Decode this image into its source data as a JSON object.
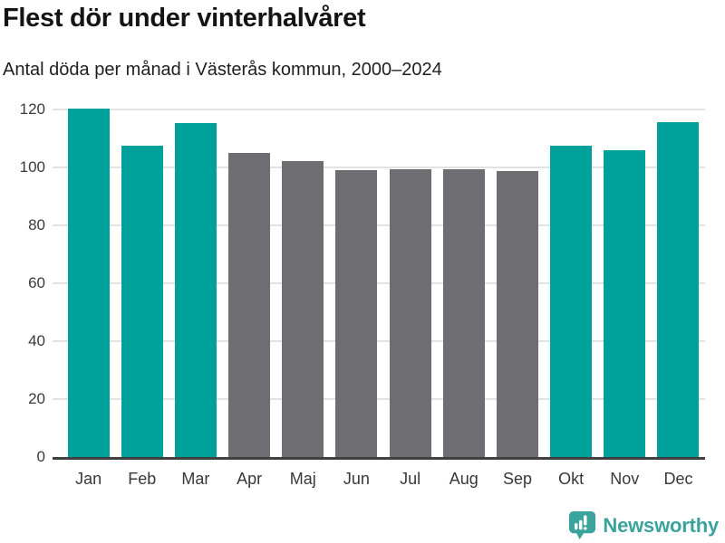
{
  "header": {
    "title": "Flest dör under vinterhalvåret",
    "subtitle": "Antal döda per månad i Västerås kommun, 2000–2024"
  },
  "colors": {
    "highlight": "#00a19a",
    "muted": "#6e6e72",
    "gridline": "#e2e2e2",
    "axis_line": "#404040",
    "brand_teal": "#3aa39b"
  },
  "chart_data": {
    "type": "bar",
    "title": "Flest dör under vinterhalvåret",
    "subtitle": "Antal döda per månad i Västerås kommun, 2000–2024",
    "categories": [
      "Jan",
      "Feb",
      "Mar",
      "Apr",
      "Maj",
      "Jun",
      "Jul",
      "Aug",
      "Sep",
      "Okt",
      "Nov",
      "Dec"
    ],
    "values": [
      120.3,
      107.5,
      115.3,
      105.1,
      102.1,
      99.2,
      99.5,
      99.4,
      98.8,
      107.4,
      105.8,
      115.7
    ],
    "bar_colors": [
      "highlight",
      "highlight",
      "highlight",
      "muted",
      "muted",
      "muted",
      "muted",
      "muted",
      "muted",
      "highlight",
      "highlight",
      "highlight"
    ],
    "xlabel": "",
    "ylabel": "",
    "ylim": [
      0,
      120
    ],
    "yticks": [
      0,
      20,
      40,
      60,
      80,
      100,
      120
    ],
    "grid": true,
    "legend": false
  },
  "footer": {
    "brand": "Newsworthy",
    "logo_icon": "bar-chart-pin-icon"
  }
}
